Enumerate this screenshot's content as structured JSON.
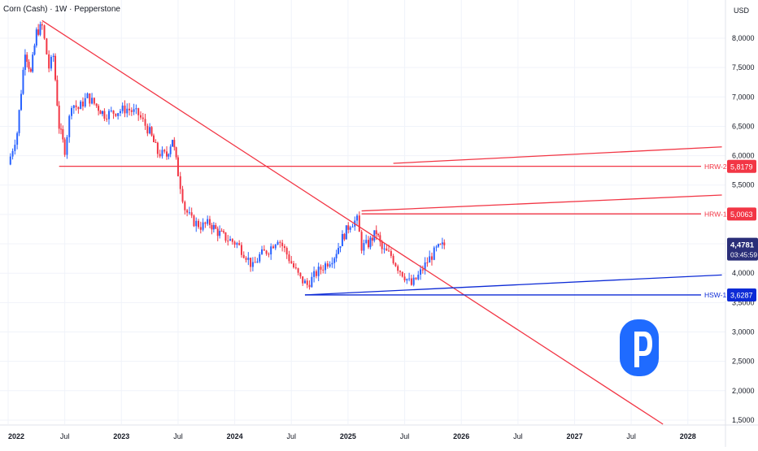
{
  "header": {
    "title": "Corn (Cash) · 1W · Pepperstone",
    "currency": "USD"
  },
  "colors": {
    "up": "#2962ff",
    "down": "#f23645",
    "red_line": "#f23645",
    "blue_line": "#0d2bd6",
    "grid": "#f0f3fa",
    "axis_text": "#131722",
    "price_tag": "#2a2e78"
  },
  "chart_data": {
    "type": "candlestick",
    "title": "Corn (Cash) · 1W · Pepperstone",
    "x_ticks": [
      {
        "x": 2022.0,
        "label": "2022",
        "bold": true
      },
      {
        "x": 2022.5,
        "label": "Jul",
        "bold": false
      },
      {
        "x": 2023.0,
        "label": "2023",
        "bold": true
      },
      {
        "x": 2023.5,
        "label": "Jul",
        "bold": false
      },
      {
        "x": 2024.0,
        "label": "2024",
        "bold": true
      },
      {
        "x": 2024.5,
        "label": "Jul",
        "bold": false
      },
      {
        "x": 2025.0,
        "label": "2025",
        "bold": true
      },
      {
        "x": 2025.5,
        "label": "Jul",
        "bold": false
      },
      {
        "x": 2026.0,
        "label": "2026",
        "bold": true
      },
      {
        "x": 2026.5,
        "label": "Jul",
        "bold": false
      },
      {
        "x": 2027.0,
        "label": "2027",
        "bold": true
      },
      {
        "x": 2027.5,
        "label": "Jul",
        "bold": false
      },
      {
        "x": 2028.0,
        "label": "2028",
        "bold": true
      }
    ],
    "y_ticks": [
      "1,5000",
      "2,0000",
      "2,5000",
      "3,0000",
      "3,5000",
      "4,0000",
      "4,5000",
      "5,0000",
      "5,5000",
      "6,0000",
      "6,5000",
      "7,0000",
      "7,5000",
      "8,0000"
    ],
    "y_tick_values": [
      1.5,
      2.0,
      2.5,
      3.0,
      3.5,
      4.0,
      4.5,
      5.0,
      5.5,
      6.0,
      6.5,
      7.0,
      7.5,
      8.0
    ],
    "ylim": [
      1.43,
      8.65
    ],
    "xlim": [
      2022.0,
      2028.3
    ],
    "price_series": [
      [
        2022.0,
        5.85
      ],
      [
        2022.08,
        6.4
      ],
      [
        2022.15,
        7.8
      ],
      [
        2022.2,
        7.4
      ],
      [
        2022.25,
        8.1
      ],
      [
        2022.3,
        8.2
      ],
      [
        2022.36,
        7.5
      ],
      [
        2022.4,
        7.7
      ],
      [
        2022.45,
        6.5
      ],
      [
        2022.5,
        6.1
      ],
      [
        2022.56,
        6.9
      ],
      [
        2022.62,
        6.8
      ],
      [
        2022.7,
        7.0
      ],
      [
        2022.78,
        6.85
      ],
      [
        2022.85,
        6.7
      ],
      [
        2022.95,
        6.75
      ],
      [
        2023.05,
        6.8
      ],
      [
        2023.15,
        6.7
      ],
      [
        2023.25,
        6.4
      ],
      [
        2023.32,
        6.05
      ],
      [
        2023.4,
        6.0
      ],
      [
        2023.45,
        6.3
      ],
      [
        2023.5,
        5.7
      ],
      [
        2023.56,
        5.1
      ],
      [
        2023.62,
        4.9
      ],
      [
        2023.7,
        4.8
      ],
      [
        2023.78,
        4.85
      ],
      [
        2023.85,
        4.7
      ],
      [
        2023.92,
        4.6
      ],
      [
        2024.02,
        4.5
      ],
      [
        2024.1,
        4.3
      ],
      [
        2024.16,
        4.1
      ],
      [
        2024.22,
        4.3
      ],
      [
        2024.3,
        4.4
      ],
      [
        2024.38,
        4.6
      ],
      [
        2024.44,
        4.4
      ],
      [
        2024.52,
        4.1
      ],
      [
        2024.58,
        3.9
      ],
      [
        2024.64,
        3.8
      ],
      [
        2024.72,
        4.0
      ],
      [
        2024.8,
        4.15
      ],
      [
        2024.88,
        4.3
      ],
      [
        2024.95,
        4.6
      ],
      [
        2025.02,
        4.85
      ],
      [
        2025.08,
        4.9
      ],
      [
        2025.12,
        4.45
      ],
      [
        2025.18,
        4.5
      ],
      [
        2025.25,
        4.7
      ],
      [
        2025.3,
        4.4
      ],
      [
        2025.38,
        4.3
      ],
      [
        2025.44,
        4.1
      ],
      [
        2025.5,
        3.95
      ],
      [
        2025.56,
        3.8
      ],
      [
        2025.62,
        3.95
      ],
      [
        2025.7,
        4.2
      ],
      [
        2025.78,
        4.4
      ],
      [
        2025.85,
        4.48
      ]
    ],
    "lines": [
      {
        "name": "downtrend",
        "color": "red",
        "from": [
          2022.3,
          8.3
        ],
        "to": [
          2027.78,
          1.43
        ]
      },
      {
        "name": "hrw2-horizontal",
        "color": "red",
        "from": [
          2022.45,
          5.82
        ],
        "to": [
          2028.3,
          5.82
        ]
      },
      {
        "name": "hrw2-channel",
        "color": "red",
        "from": [
          2025.4,
          5.87
        ],
        "to": [
          2028.3,
          6.15
        ]
      },
      {
        "name": "hrw1-horizontal",
        "color": "red",
        "from": [
          2025.12,
          5.01
        ],
        "to": [
          2028.3,
          5.01
        ]
      },
      {
        "name": "hrw1-channel",
        "color": "red",
        "from": [
          2025.12,
          5.06
        ],
        "to": [
          2028.3,
          5.33
        ]
      },
      {
        "name": "hsw1-horizontal",
        "color": "blue",
        "from": [
          2024.62,
          3.63
        ],
        "to": [
          2028.3,
          3.63
        ]
      },
      {
        "name": "hsw1-trend",
        "color": "blue",
        "from": [
          2024.62,
          3.63
        ],
        "to": [
          2028.3,
          3.97
        ]
      }
    ],
    "levels": [
      {
        "name": "HRW-2",
        "value": "5,8179",
        "color": "red"
      },
      {
        "name": "HRW-1",
        "value": "5,0063",
        "color": "red"
      },
      {
        "name": "HSW-1",
        "value": "3,6287",
        "color": "blue"
      }
    ],
    "current_price": {
      "value": "4,4781",
      "countdown": "03:45:59"
    }
  },
  "logo": {
    "name": "pepperstone-logo",
    "letter": "P"
  }
}
